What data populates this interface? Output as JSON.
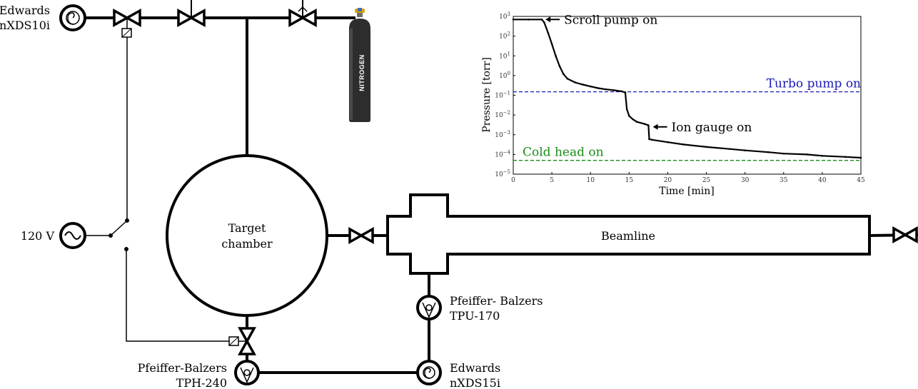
{
  "diagram": {
    "components": {
      "scroll_pump_top": {
        "line1": "Edwards",
        "line2": "nXDS10i"
      },
      "power_supply": {
        "label": "120 V"
      },
      "target_chamber": {
        "line1": "Target",
        "line2": "chamber"
      },
      "beamline": {
        "label": "Beamline"
      },
      "turbo_pump_right": {
        "line1": "Pfeiffer- Balzers",
        "line2": "TPU-170"
      },
      "scroll_pump_bottom": {
        "line1": "Edwards",
        "line2": "nXDS15i"
      },
      "turbo_pump_left": {
        "line1": "Pfeiffer-Balzers",
        "line2": "TPH-240"
      },
      "gas_cylinder": {
        "label": "NITROGEN"
      }
    }
  },
  "chart_data": {
    "type": "line",
    "xlabel": "Time [min]",
    "ylabel": "Pressure [torr]",
    "x_ticks": [
      0,
      5,
      10,
      15,
      20,
      25,
      30,
      35,
      40,
      45
    ],
    "y_tick_exponents": [
      3,
      2,
      1,
      0,
      -1,
      -2,
      -3,
      -4,
      -5
    ],
    "xlim": [
      0,
      45
    ],
    "ylim_log10": [
      -5,
      3
    ],
    "y_scale": "log",
    "series": [
      {
        "color": "#000000",
        "points": [
          [
            0,
            700
          ],
          [
            2,
            700
          ],
          [
            3.7,
            700
          ],
          [
            4,
            500
          ],
          [
            4.5,
            150
          ],
          [
            5,
            40
          ],
          [
            5.5,
            10
          ],
          [
            6,
            3
          ],
          [
            6.5,
            1.2
          ],
          [
            7,
            0.7
          ],
          [
            8,
            0.45
          ],
          [
            9,
            0.35
          ],
          [
            10,
            0.28
          ],
          [
            11,
            0.23
          ],
          [
            12,
            0.2
          ],
          [
            13,
            0.18
          ],
          [
            14,
            0.16
          ],
          [
            14.5,
            0.14
          ],
          [
            14.7,
            0.02
          ],
          [
            15,
            0.009
          ],
          [
            15.5,
            0.006
          ],
          [
            16,
            0.0045
          ],
          [
            17,
            0.0035
          ],
          [
            17.5,
            0.003
          ],
          [
            17.6,
            0.0006
          ],
          [
            18,
            0.00055
          ],
          [
            20,
            0.00042
          ],
          [
            22,
            0.00032
          ],
          [
            25,
            0.00024
          ],
          [
            28,
            0.00019
          ],
          [
            30,
            0.00016
          ],
          [
            33,
            0.00013
          ],
          [
            35,
            0.00011
          ],
          [
            38,
            0.0001
          ],
          [
            40,
            8.5e-05
          ],
          [
            43,
            7.5e-05
          ],
          [
            45,
            6.8e-05
          ]
        ]
      }
    ],
    "reference_lines": [
      {
        "label": "Turbo pump on",
        "value": 0.15,
        "color": "#1a1ab8"
      },
      {
        "label": "Cold head on",
        "value": 5e-05,
        "color": "#1a8c1a"
      }
    ],
    "annotations": [
      {
        "text": "Scroll pump on",
        "x": 3.8,
        "y": 700
      },
      {
        "text": "Ion gauge on",
        "x": 17.7,
        "y": 0.0025
      }
    ]
  }
}
